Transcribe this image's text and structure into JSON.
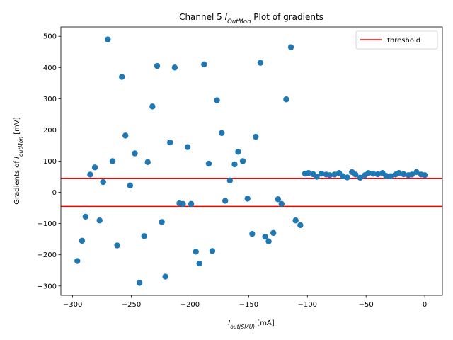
{
  "chart_data": {
    "type": "scatter",
    "title": "Channel 5 I_OutMon Plot of gradients",
    "title_parts": {
      "prefix": "Channel 5 ",
      "main": "I",
      "sub": "OutMon",
      "suffix": " Plot of gradients"
    },
    "xlabel": "I_out(SMU) [mA]",
    "xlabel_parts": {
      "main": "I",
      "sub": "out(SMU)",
      "suffix": " [mA]"
    },
    "ylabel": "Gradients of I_outMon [mV]",
    "ylabel_parts": {
      "prefix": "Gradients of ",
      "main": "I",
      "sub": "outMon",
      "suffix": " [mV]"
    },
    "xlim": [
      -310,
      15
    ],
    "ylim": [
      -330,
      530
    ],
    "xticks": [
      -300,
      -250,
      -200,
      -150,
      -100,
      -50,
      0
    ],
    "yticks": [
      -300,
      -200,
      -100,
      0,
      100,
      200,
      300,
      400,
      500
    ],
    "grid": false,
    "legend_position": "top-right",
    "series": [
      {
        "kind": "scatter",
        "color": "#1f77b4",
        "points": [
          [
            -296,
            -220
          ],
          [
            -292,
            -155
          ],
          [
            -289,
            -78
          ],
          [
            -285,
            57
          ],
          [
            -281,
            80
          ],
          [
            -277,
            -90
          ],
          [
            -274,
            33
          ],
          [
            -270,
            490
          ],
          [
            -266,
            100
          ],
          [
            -262,
            -170
          ],
          [
            -258,
            370
          ],
          [
            -255,
            182
          ],
          [
            -251,
            22
          ],
          [
            -247,
            125
          ],
          [
            -243,
            -290
          ],
          [
            -239,
            -140
          ],
          [
            -236,
            97
          ],
          [
            -232,
            275
          ],
          [
            -228,
            405
          ],
          [
            -224,
            -95
          ],
          [
            -221,
            -270
          ],
          [
            -217,
            160
          ],
          [
            -213,
            400
          ],
          [
            -209,
            -35
          ],
          [
            -206,
            -37
          ],
          [
            -202,
            145
          ],
          [
            -199,
            -37
          ],
          [
            -195,
            -190
          ],
          [
            -192,
            -228
          ],
          [
            -188,
            410
          ],
          [
            -184,
            92
          ],
          [
            -181,
            -188
          ],
          [
            -177,
            295
          ],
          [
            -173,
            190
          ],
          [
            -170,
            -27
          ],
          [
            -166,
            38
          ],
          [
            -162,
            90
          ],
          [
            -159,
            130
          ],
          [
            -155,
            100
          ],
          [
            -151,
            -20
          ],
          [
            -147,
            -133
          ],
          [
            -144,
            178
          ],
          [
            -140,
            415
          ],
          [
            -136,
            -142
          ],
          [
            -133,
            -157
          ],
          [
            -129,
            -130
          ],
          [
            -125,
            -22
          ],
          [
            -122,
            -37
          ],
          [
            -118,
            298
          ],
          [
            -114,
            465
          ],
          [
            -110,
            -90
          ],
          [
            -106,
            -105
          ],
          [
            -102,
            60
          ],
          [
            -99,
            62
          ],
          [
            -95,
            58
          ],
          [
            -92,
            50
          ],
          [
            -88,
            60
          ],
          [
            -84,
            57
          ],
          [
            -81,
            55
          ],
          [
            -77,
            57
          ],
          [
            -73,
            62
          ],
          [
            -70,
            52
          ],
          [
            -66,
            48
          ],
          [
            -62,
            65
          ],
          [
            -59,
            57
          ],
          [
            -55,
            47
          ],
          [
            -51,
            55
          ],
          [
            -48,
            62
          ],
          [
            -44,
            60
          ],
          [
            -40,
            58
          ],
          [
            -36,
            62
          ],
          [
            -33,
            53
          ],
          [
            -29,
            52
          ],
          [
            -25,
            57
          ],
          [
            -22,
            62
          ],
          [
            -18,
            58
          ],
          [
            -14,
            55
          ],
          [
            -11,
            57
          ],
          [
            -7,
            65
          ],
          [
            -3,
            57
          ],
          [
            0,
            55
          ]
        ]
      },
      {
        "kind": "hline",
        "name": "threshold",
        "color": "#ff0000",
        "y": 45
      },
      {
        "kind": "hline",
        "name": "",
        "color": "#ff0000",
        "y": -45
      }
    ],
    "legend": [
      {
        "label": "threshold",
        "color": "#ff0000"
      }
    ]
  }
}
